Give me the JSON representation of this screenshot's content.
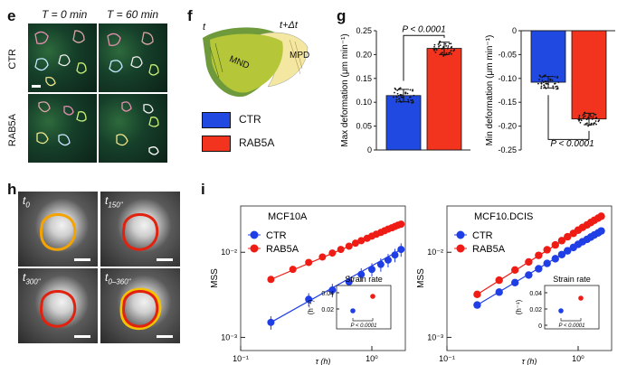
{
  "panels": {
    "e": {
      "letter": "e",
      "time_labels": [
        "T = 0 min",
        "T = 60 min"
      ],
      "row_labels": [
        "CTR",
        "RAB5A"
      ]
    },
    "f": {
      "letter": "f",
      "labels": {
        "t": "t",
        "t_dt": "t+Δt",
        "mnd": "MND",
        "mpd": "MPD"
      },
      "legend": [
        {
          "name": "CTR",
          "color": "#1f49e0"
        },
        {
          "name": "RAB5A",
          "color": "#f2331d"
        }
      ]
    },
    "g": {
      "letter": "g",
      "left": {
        "ylabel": "Max deformation (μm min⁻¹)",
        "yticks": [
          "0",
          "0.05",
          "0.10",
          "0.15",
          "0.20",
          "0.25"
        ],
        "pvalue": "P < 0.0001"
      },
      "right": {
        "ylabel": "Min deformation (μm min⁻¹)",
        "yticks": [
          "0",
          "-0.05",
          "-0.10",
          "-0.15",
          "-0.20",
          "-0.25"
        ],
        "pvalue": "P < 0.0001"
      }
    },
    "h": {
      "letter": "h",
      "tiles": [
        {
          "label": "t",
          "sub": "0",
          "contour": "#f5a300"
        },
        {
          "label": "t",
          "sub": "150\"",
          "contour": "#e0220f"
        },
        {
          "label": "t",
          "sub": "300\"",
          "contour": "#e0220f"
        },
        {
          "label": "t",
          "sub": "0–360\"",
          "contour": "#e0220f"
        }
      ]
    },
    "i": {
      "letter": "i",
      "left": {
        "title": "MCF10A",
        "ylabel": "MSS",
        "yticks": [
          "10⁻²",
          "10⁻³"
        ],
        "xticks": [
          "10⁻¹",
          "10⁰"
        ],
        "xlabel_partial": "τ (h)",
        "inset": {
          "title": "Strain rate",
          "ylabel": "(h⁻¹)",
          "yticks": [
            "0.04",
            "0.02"
          ],
          "pvalue": "P < 0.0001"
        }
      },
      "right": {
        "title": "MCF10.DCIS",
        "ylabel": "MSS",
        "yticks": [
          "10⁻²",
          "10⁻³"
        ],
        "xticks": [
          "10⁻¹",
          "10⁰"
        ],
        "xlabel_partial": "τ (h)",
        "inset": {
          "title": "Strain rate",
          "ylabel": "(h⁻¹)",
          "yticks": [
            "0.04",
            "0.02",
            "0"
          ],
          "pvalue": "P < 0.0001"
        }
      },
      "legend": [
        {
          "name": "CTR",
          "color": "#1f3ee6"
        },
        {
          "name": "RAB5A",
          "color": "#ee1c14"
        }
      ]
    }
  },
  "chart_data": [
    {
      "type": "bar",
      "categories": [
        "CTR",
        "RAB5A"
      ],
      "values": [
        0.114,
        0.213
      ],
      "ylabel": "Max deformation (μm min⁻¹)",
      "ylim": [
        0,
        0.25
      ],
      "colors": [
        "#1f49e0",
        "#f2331d"
      ]
    },
    {
      "type": "bar",
      "categories": [
        "CTR",
        "RAB5A"
      ],
      "values": [
        -0.108,
        -0.185
      ],
      "ylabel": "Min deformation (μm min⁻¹)",
      "ylim": [
        -0.25,
        0
      ],
      "colors": [
        "#1f49e0",
        "#f2331d"
      ]
    },
    {
      "type": "line",
      "title": "MCF10A",
      "ylabel": "MSS",
      "xscale": "log",
      "yscale": "log",
      "series": [
        {
          "name": "CTR",
          "x": [
            0.17,
            0.33,
            0.5,
            0.67,
            0.83,
            1.0,
            1.17,
            1.33,
            1.5,
            1.67
          ],
          "y": [
            0.0015,
            0.0028,
            0.0036,
            0.0045,
            0.0055,
            0.0063,
            0.0072,
            0.0081,
            0.0093,
            0.0108
          ]
        },
        {
          "name": "RAB5A",
          "x": [
            0.17,
            0.25,
            0.33,
            0.42,
            0.5,
            0.58,
            0.67,
            0.75,
            0.83,
            0.92,
            1.0,
            1.08,
            1.17,
            1.25,
            1.33,
            1.42,
            1.5,
            1.58,
            1.67
          ],
          "y": [
            0.0048,
            0.0063,
            0.0076,
            0.0088,
            0.0098,
            0.0108,
            0.0118,
            0.0128,
            0.0137,
            0.0146,
            0.0155,
            0.0163,
            0.0171,
            0.0179,
            0.0187,
            0.0194,
            0.0201,
            0.0208,
            0.0214
          ]
        }
      ]
    },
    {
      "type": "line",
      "title": "MCF10.DCIS",
      "ylabel": "MSS",
      "xscale": "log",
      "yscale": "log",
      "series": [
        {
          "name": "CTR",
          "x": [
            0.17,
            0.25,
            0.33,
            0.42,
            0.5,
            0.58,
            0.67,
            0.75,
            0.83,
            0.92,
            1.0,
            1.08,
            1.17,
            1.25,
            1.33,
            1.42,
            1.5
          ],
          "y": [
            0.0024,
            0.0034,
            0.0044,
            0.0054,
            0.0064,
            0.0074,
            0.0084,
            0.0094,
            0.0104,
            0.0114,
            0.0124,
            0.0133,
            0.0142,
            0.0151,
            0.016,
            0.0169,
            0.0178
          ]
        },
        {
          "name": "RAB5A",
          "x": [
            0.17,
            0.25,
            0.33,
            0.42,
            0.5,
            0.58,
            0.67,
            0.75,
            0.83,
            0.92,
            1.0,
            1.08,
            1.17,
            1.25,
            1.33,
            1.42,
            1.5
          ],
          "y": [
            0.0032,
            0.0047,
            0.0062,
            0.0077,
            0.0092,
            0.0107,
            0.0122,
            0.0137,
            0.0152,
            0.0167,
            0.0182,
            0.0196,
            0.021,
            0.0224,
            0.0238,
            0.0252,
            0.0265
          ]
        }
      ]
    }
  ]
}
